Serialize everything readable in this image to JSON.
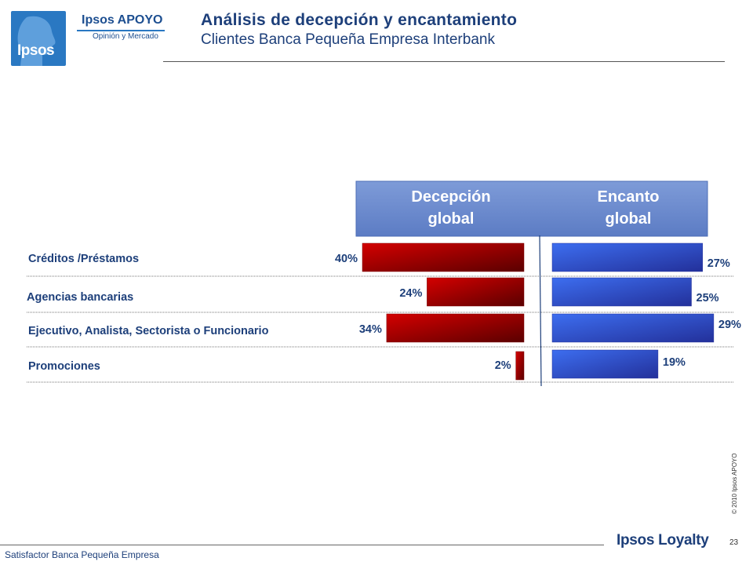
{
  "brand": {
    "logo_word": "Ipsos",
    "name": "Ipsos APOYO",
    "tagline": "Opinión y Mercado"
  },
  "header": {
    "title": "Análisis de decepción y encantamiento",
    "subtitle": "Clientes Banca Pequeña Empresa Interbank"
  },
  "footer": {
    "text": "Satisfactor Banca Pequeña Empresa",
    "page_number": "23",
    "copyright": "© 2010 Ipsos APOYO",
    "loyalty_brand": "Ipsos Loyalty"
  },
  "colors": {
    "decepcion": "#b00000",
    "encanto": "#2f4fd6",
    "header_box": "#6f8ed0",
    "text_blue": "#1d3f7a"
  },
  "chart_data": {
    "type": "bar",
    "categories": [
      "Créditos /Préstamos",
      "Agencias bancarias",
      "Ejecutivo, Analista, Sectorista o Funcionario",
      "Promociones"
    ],
    "series": [
      {
        "name": "Decepción global",
        "values": [
          40,
          24,
          34,
          2
        ],
        "labels": [
          "40%",
          "24%",
          "34%",
          "2%"
        ]
      },
      {
        "name": "Encanto global",
        "values": [
          27,
          25,
          29,
          19
        ],
        "labels": [
          "27%",
          "25%",
          "29%",
          "19%"
        ]
      }
    ],
    "column_headers": [
      "Decepción\nglobal",
      "Encanto\nglobal"
    ]
  }
}
